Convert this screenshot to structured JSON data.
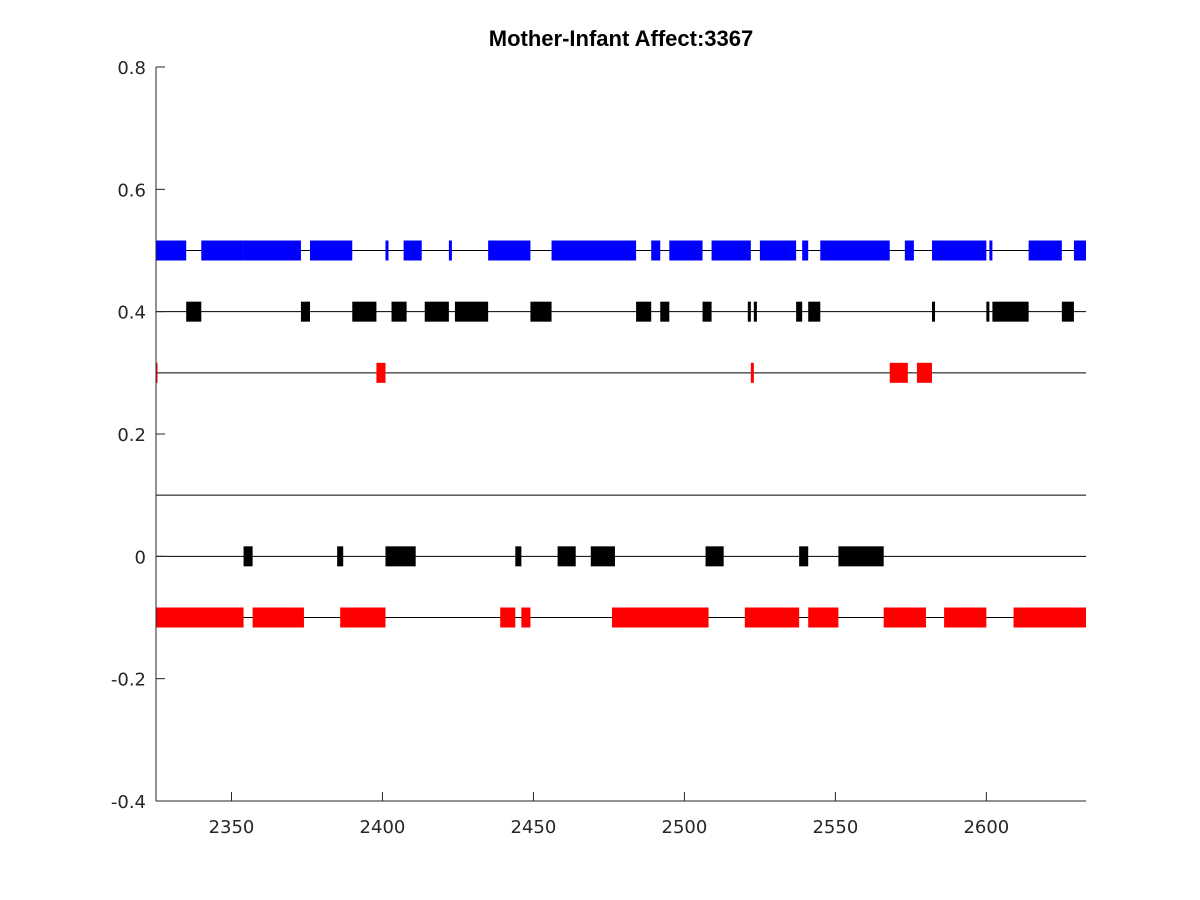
{
  "chart_data": {
    "type": "timeline",
    "title": "Mother-Infant Affect:3367",
    "xlabel": "",
    "ylabel": "",
    "xlim": [
      2325,
      2633
    ],
    "ylim": [
      -0.4,
      0.8
    ],
    "xticks": [
      2350,
      2400,
      2450,
      2500,
      2550,
      2600
    ],
    "yticks": [
      -0.4,
      -0.2,
      0,
      0.2,
      0.4,
      0.6,
      0.8
    ],
    "xtick_labels": [
      "2350",
      "2400",
      "2450",
      "2500",
      "2550",
      "2600"
    ],
    "ytick_labels": [
      "-0.4",
      "-0.2",
      "0",
      "0.2",
      "0.4",
      "0.6",
      "0.8"
    ],
    "grid": false,
    "separator_lines": [
      0.1
    ],
    "series": [
      {
        "y": 0.5,
        "color": "#0000ff",
        "segments": [
          [
            2325,
            2335
          ],
          [
            2340,
            2354
          ],
          [
            2354,
            2373
          ],
          [
            2376,
            2390
          ],
          [
            2401,
            2402
          ],
          [
            2407,
            2413
          ],
          [
            2422,
            2423
          ],
          [
            2435,
            2449
          ],
          [
            2456,
            2484
          ],
          [
            2489,
            2492
          ],
          [
            2495,
            2506
          ],
          [
            2509,
            2522
          ],
          [
            2525,
            2537
          ],
          [
            2539,
            2541
          ],
          [
            2545,
            2568
          ],
          [
            2573,
            2576
          ],
          [
            2582,
            2600
          ],
          [
            2601,
            2602
          ],
          [
            2614,
            2625
          ],
          [
            2629,
            2633
          ]
        ]
      },
      {
        "y": 0.4,
        "color": "#000000",
        "segments": [
          [
            2335,
            2340
          ],
          [
            2373,
            2376
          ],
          [
            2390,
            2398
          ],
          [
            2403,
            2408
          ],
          [
            2414,
            2422
          ],
          [
            2424,
            2435
          ],
          [
            2449,
            2456
          ],
          [
            2484,
            2489
          ],
          [
            2492,
            2495
          ],
          [
            2506,
            2509
          ],
          [
            2521,
            2522
          ],
          [
            2523,
            2524
          ],
          [
            2537,
            2539
          ],
          [
            2541,
            2545
          ],
          [
            2582,
            2583
          ],
          [
            2600,
            2601
          ],
          [
            2602,
            2614
          ],
          [
            2625,
            2629
          ]
        ]
      },
      {
        "y": 0.3,
        "color": "#ff0000",
        "segments": [
          [
            2325,
            2325.5
          ],
          [
            2398,
            2401
          ],
          [
            2522,
            2523
          ],
          [
            2568,
            2574
          ],
          [
            2577,
            2582
          ]
        ]
      },
      {
        "y": 0,
        "color": "#000000",
        "segments": [
          [
            2354,
            2357
          ],
          [
            2385,
            2387
          ],
          [
            2401,
            2411
          ],
          [
            2444,
            2446
          ],
          [
            2458,
            2464
          ],
          [
            2469,
            2477
          ],
          [
            2507,
            2513
          ],
          [
            2538,
            2541
          ],
          [
            2551,
            2566
          ]
        ]
      },
      {
        "y": -0.1,
        "color": "#ff0000",
        "segments": [
          [
            2325,
            2354
          ],
          [
            2357,
            2374
          ],
          [
            2386,
            2401
          ],
          [
            2439,
            2444
          ],
          [
            2446,
            2449
          ],
          [
            2476,
            2508
          ],
          [
            2520,
            2538
          ],
          [
            2541,
            2551
          ],
          [
            2566,
            2580
          ],
          [
            2586,
            2600
          ],
          [
            2609,
            2633
          ]
        ]
      }
    ]
  }
}
